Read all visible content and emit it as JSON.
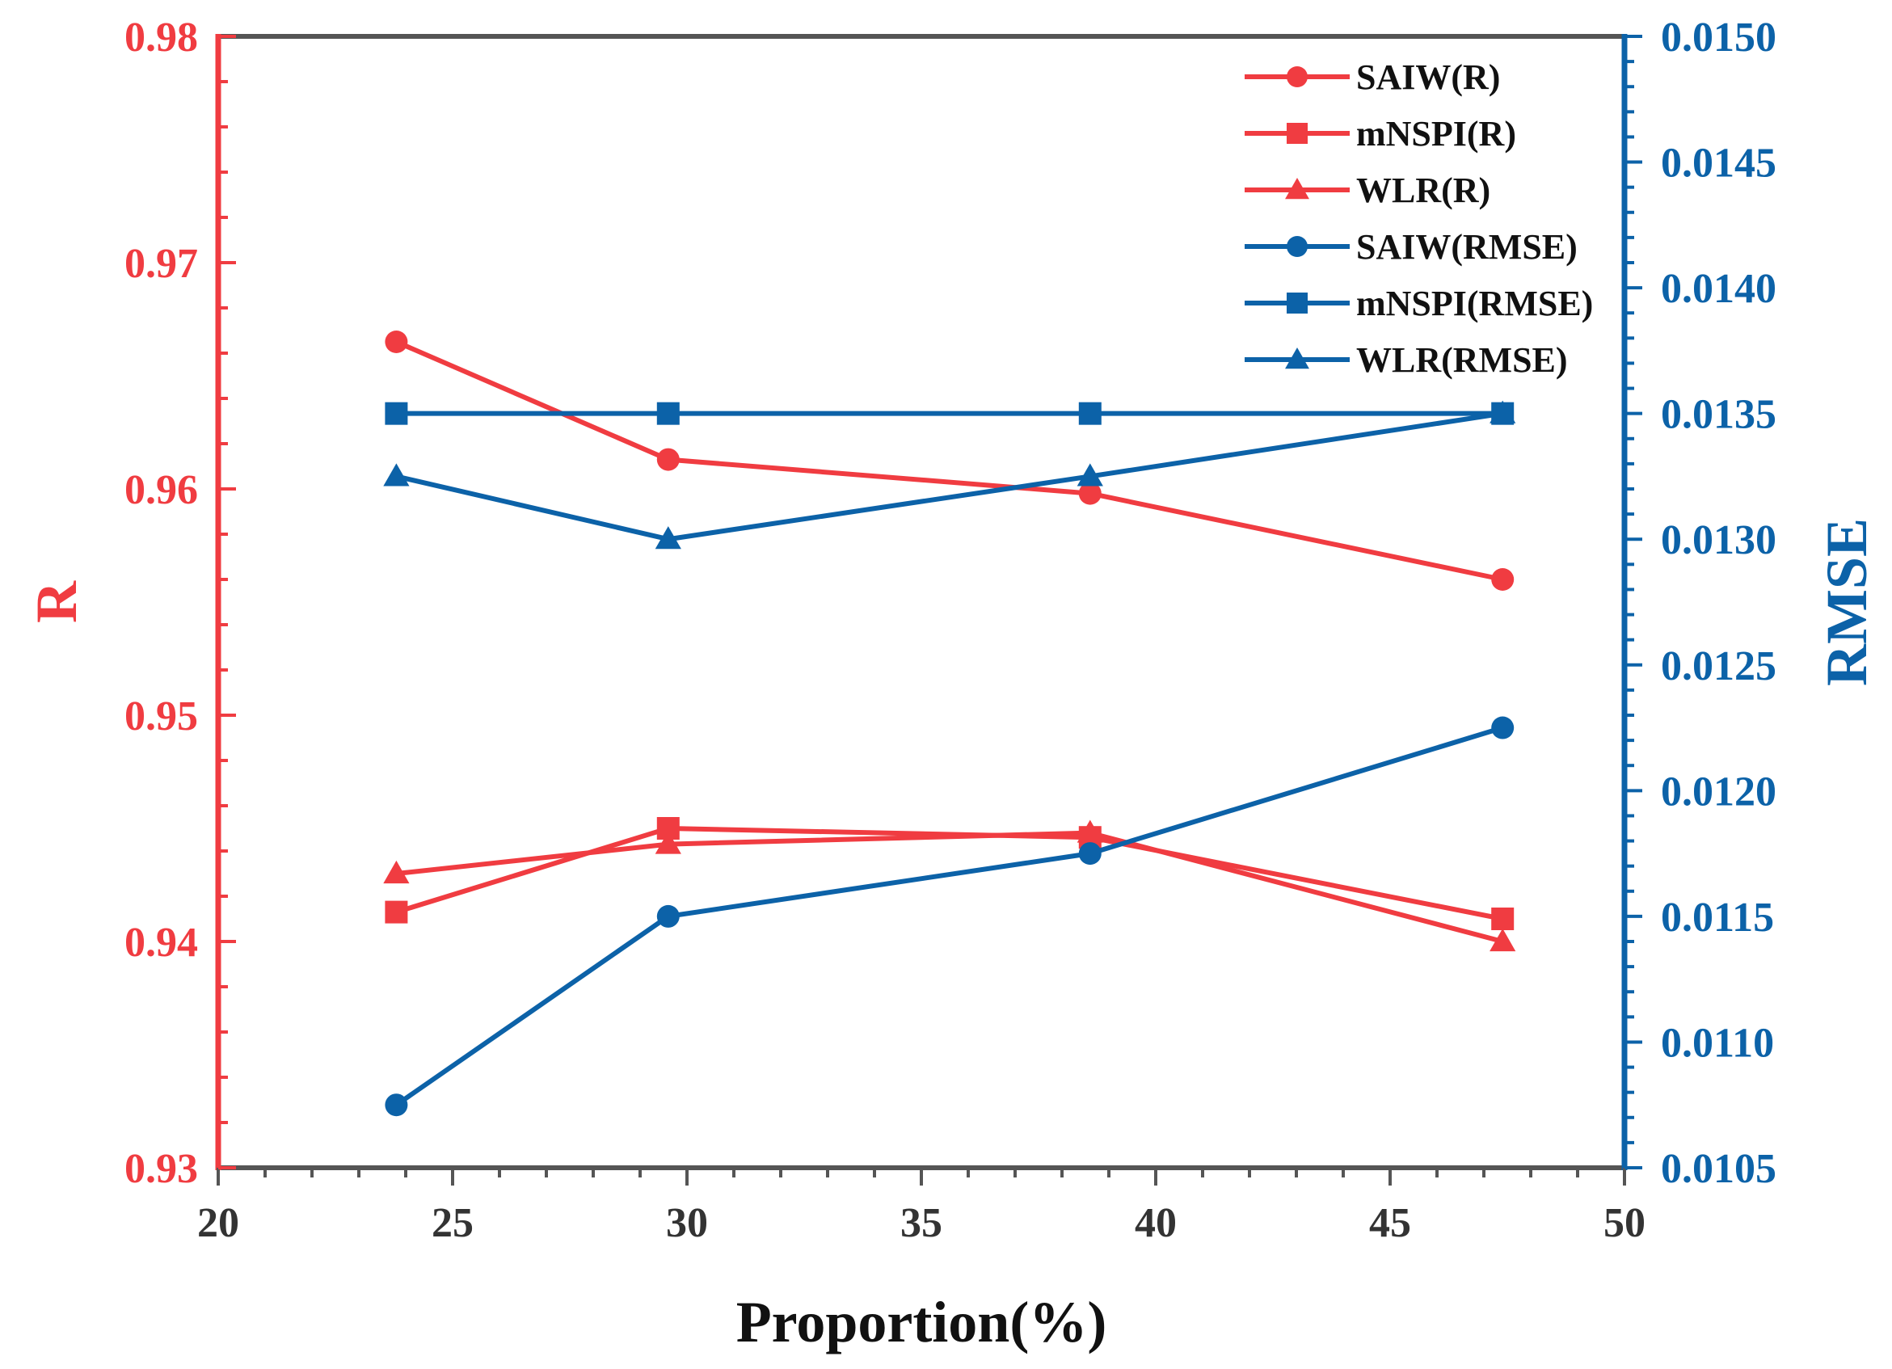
{
  "chart_data": {
    "type": "line",
    "xlabel": "Proportion(%)",
    "ylabel_left": "R",
    "ylabel_right": "RMSE",
    "xlim": [
      20,
      50
    ],
    "ylim_left": [
      0.93,
      0.98
    ],
    "ylim_right": [
      0.0105,
      0.015
    ],
    "xticks": [
      20,
      25,
      30,
      35,
      40,
      45,
      50
    ],
    "xtick_labels": [
      "20",
      "25",
      "30",
      "35",
      "40",
      "45",
      "50"
    ],
    "yticks_left": [
      0.93,
      0.94,
      0.95,
      0.96,
      0.97,
      0.98
    ],
    "ytick_labels_left": [
      "0.93",
      "0.94",
      "0.95",
      "0.96",
      "0.97",
      "0.98"
    ],
    "yticks_right": [
      0.0105,
      0.011,
      0.0115,
      0.012,
      0.0125,
      0.013,
      0.0135,
      0.014,
      0.0145,
      0.015
    ],
    "ytick_labels_right": [
      "0.0105",
      "0.0110",
      "0.0115",
      "0.0120",
      "0.0125",
      "0.0130",
      "0.0135",
      "0.0140",
      "0.0145",
      "0.0150"
    ],
    "x": [
      23.8,
      29.6,
      38.6,
      47.4
    ],
    "colors": {
      "left": "#f03c41",
      "right": "#0c62a8",
      "frame": "#555555"
    },
    "legend_position": "top-right",
    "series": [
      {
        "name": "SAIW(R)",
        "axis": "left",
        "marker": "circle",
        "values": [
          0.9665,
          0.9613,
          0.9598,
          0.956
        ]
      },
      {
        "name": "mNSPI(R)",
        "axis": "left",
        "marker": "square",
        "values": [
          0.9413,
          0.945,
          0.9446,
          0.941
        ]
      },
      {
        "name": "WLR(R)",
        "axis": "left",
        "marker": "triangle",
        "values": [
          0.943,
          0.9443,
          0.9448,
          0.94
        ]
      },
      {
        "name": "SAIW(RMSE)",
        "axis": "right",
        "marker": "circle",
        "values": [
          0.01075,
          0.0115,
          0.01175,
          0.01225
        ]
      },
      {
        "name": "mNSPI(RMSE)",
        "axis": "right",
        "marker": "square",
        "values": [
          0.0135,
          0.0135,
          0.0135,
          0.0135
        ]
      },
      {
        "name": "WLR(RMSE)",
        "axis": "right",
        "marker": "triangle",
        "values": [
          0.01325,
          0.013,
          0.01325,
          0.0135
        ]
      }
    ]
  }
}
